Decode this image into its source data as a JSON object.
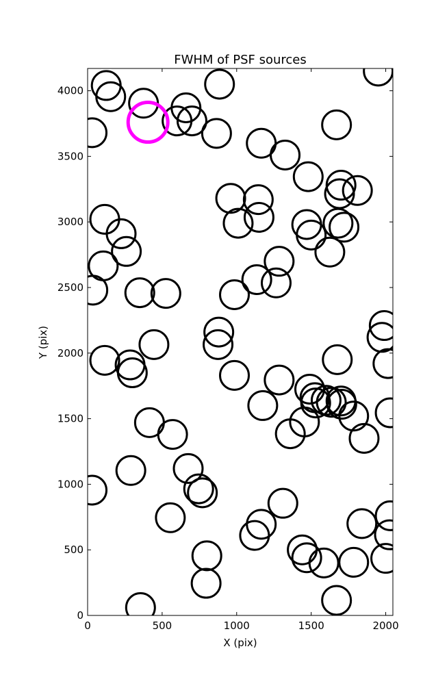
{
  "chart_data": {
    "type": "scatter",
    "title": "FWHM of PSF sources",
    "xlabel": "X (pix)",
    "ylabel": "Y (pix)",
    "xlim": [
      0,
      2048
    ],
    "ylim": [
      0,
      4170
    ],
    "grid": false,
    "marker": "open circle",
    "marker_size_note": "circle radius encodes FWHM",
    "x_ticks": [
      0,
      500,
      1000,
      1500,
      2000
    ],
    "y_ticks": [
      0,
      500,
      1000,
      1500,
      2000,
      2500,
      3000,
      3500,
      4000
    ],
    "colors": {
      "default": "#000000",
      "highlight": "#ff00ff"
    },
    "highlight": {
      "x": 405,
      "y": 3760
    },
    "points": [
      {
        "x": 125,
        "y": 4040
      },
      {
        "x": 155,
        "y": 3955
      },
      {
        "x": 375,
        "y": 3905
      },
      {
        "x": 600,
        "y": 3770
      },
      {
        "x": 660,
        "y": 3870
      },
      {
        "x": 700,
        "y": 3770
      },
      {
        "x": 885,
        "y": 4050
      },
      {
        "x": 865,
        "y": 3675
      },
      {
        "x": 30,
        "y": 3680
      },
      {
        "x": 1950,
        "y": 4150
      },
      {
        "x": 1670,
        "y": 3740
      },
      {
        "x": 1165,
        "y": 3600
      },
      {
        "x": 1325,
        "y": 3510
      },
      {
        "x": 1480,
        "y": 3345
      },
      {
        "x": 1700,
        "y": 3280
      },
      {
        "x": 1690,
        "y": 3215
      },
      {
        "x": 1810,
        "y": 3240
      },
      {
        "x": 960,
        "y": 3180
      },
      {
        "x": 1145,
        "y": 3170
      },
      {
        "x": 1150,
        "y": 3035
      },
      {
        "x": 1010,
        "y": 2990
      },
      {
        "x": 1470,
        "y": 2980
      },
      {
        "x": 1500,
        "y": 2900
      },
      {
        "x": 1680,
        "y": 2990
      },
      {
        "x": 1720,
        "y": 2960
      },
      {
        "x": 1625,
        "y": 2770
      },
      {
        "x": 115,
        "y": 3020
      },
      {
        "x": 225,
        "y": 2910
      },
      {
        "x": 260,
        "y": 2775
      },
      {
        "x": 105,
        "y": 2665
      },
      {
        "x": 35,
        "y": 2480
      },
      {
        "x": 350,
        "y": 2460
      },
      {
        "x": 525,
        "y": 2455
      },
      {
        "x": 985,
        "y": 2445
      },
      {
        "x": 1135,
        "y": 2560
      },
      {
        "x": 1285,
        "y": 2700
      },
      {
        "x": 1265,
        "y": 2535
      },
      {
        "x": 880,
        "y": 2160
      },
      {
        "x": 875,
        "y": 2065
      },
      {
        "x": 1990,
        "y": 2210
      },
      {
        "x": 1975,
        "y": 2120
      },
      {
        "x": 2015,
        "y": 1920
      },
      {
        "x": 1675,
        "y": 1950
      },
      {
        "x": 115,
        "y": 1945
      },
      {
        "x": 285,
        "y": 1910
      },
      {
        "x": 300,
        "y": 1850
      },
      {
        "x": 445,
        "y": 2065
      },
      {
        "x": 985,
        "y": 1830
      },
      {
        "x": 1285,
        "y": 1795
      },
      {
        "x": 1175,
        "y": 1600
      },
      {
        "x": 1490,
        "y": 1725
      },
      {
        "x": 1525,
        "y": 1660
      },
      {
        "x": 1530,
        "y": 1620
      },
      {
        "x": 1600,
        "y": 1640
      },
      {
        "x": 1635,
        "y": 1625
      },
      {
        "x": 1700,
        "y": 1635
      },
      {
        "x": 1705,
        "y": 1610
      },
      {
        "x": 1785,
        "y": 1520
      },
      {
        "x": 2030,
        "y": 1545
      },
      {
        "x": 1855,
        "y": 1350
      },
      {
        "x": 1455,
        "y": 1475
      },
      {
        "x": 1360,
        "y": 1385
      },
      {
        "x": 415,
        "y": 1470
      },
      {
        "x": 570,
        "y": 1380
      },
      {
        "x": 290,
        "y": 1105
      },
      {
        "x": 675,
        "y": 1120
      },
      {
        "x": 745,
        "y": 965
      },
      {
        "x": 770,
        "y": 935
      },
      {
        "x": 30,
        "y": 955
      },
      {
        "x": 555,
        "y": 745
      },
      {
        "x": 1310,
        "y": 855
      },
      {
        "x": 1165,
        "y": 695
      },
      {
        "x": 1120,
        "y": 610
      },
      {
        "x": 2030,
        "y": 760
      },
      {
        "x": 2025,
        "y": 615
      },
      {
        "x": 1840,
        "y": 700
      },
      {
        "x": 1440,
        "y": 500
      },
      {
        "x": 1470,
        "y": 440
      },
      {
        "x": 1585,
        "y": 400
      },
      {
        "x": 1785,
        "y": 405
      },
      {
        "x": 2000,
        "y": 435
      },
      {
        "x": 800,
        "y": 455
      },
      {
        "x": 795,
        "y": 245
      },
      {
        "x": 355,
        "y": 60
      },
      {
        "x": 1670,
        "y": 115
      }
    ]
  }
}
